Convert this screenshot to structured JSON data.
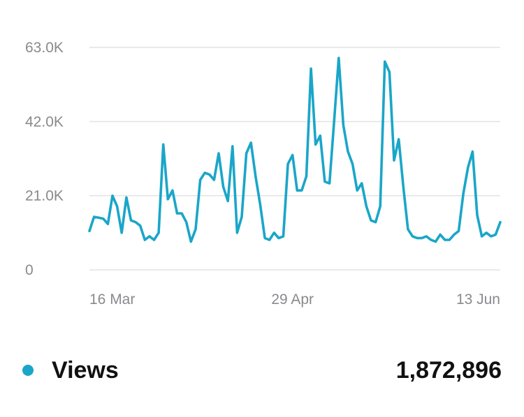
{
  "chart_data": {
    "type": "line",
    "series": [
      {
        "name": "Views",
        "color": "#1aa6c8",
        "values": [
          11000,
          15000,
          14800,
          14500,
          13000,
          21000,
          18000,
          10500,
          20500,
          14000,
          13500,
          12500,
          8500,
          9500,
          8500,
          10500,
          35500,
          20000,
          22500,
          16000,
          16000,
          13500,
          8000,
          11500,
          25500,
          27500,
          27000,
          25500,
          33000,
          23500,
          19500,
          35000,
          10500,
          15000,
          33000,
          36000,
          26500,
          18500,
          9000,
          8500,
          10500,
          9000,
          9500,
          30000,
          32500,
          22500,
          22500,
          26500,
          57000,
          35500,
          38000,
          25000,
          24500,
          42000,
          60000,
          41000,
          33500,
          30000,
          22500,
          24500,
          18000,
          14000,
          13500,
          18000,
          59000,
          56000,
          31000,
          37000,
          23500,
          11500,
          9500,
          9000,
          9000,
          9500,
          8500,
          8000,
          10000,
          8500,
          8500,
          10000,
          11000,
          21500,
          29000,
          33500,
          15500,
          9500,
          10500,
          9500,
          10000,
          13500
        ]
      }
    ],
    "y_ticks": [
      "0",
      "21.0K",
      "42.0K",
      "63.0K"
    ],
    "y_tick_values": [
      0,
      21000,
      42000,
      63000
    ],
    "ylim": [
      0,
      63000
    ],
    "x_ticks": [
      "16 Mar",
      "29 Apr",
      "13 Jun"
    ],
    "x_tick_index": [
      0,
      44,
      89
    ],
    "grid": true,
    "legend_position": "bottom"
  },
  "legend": {
    "label": "Views",
    "total": "1,872,896"
  }
}
